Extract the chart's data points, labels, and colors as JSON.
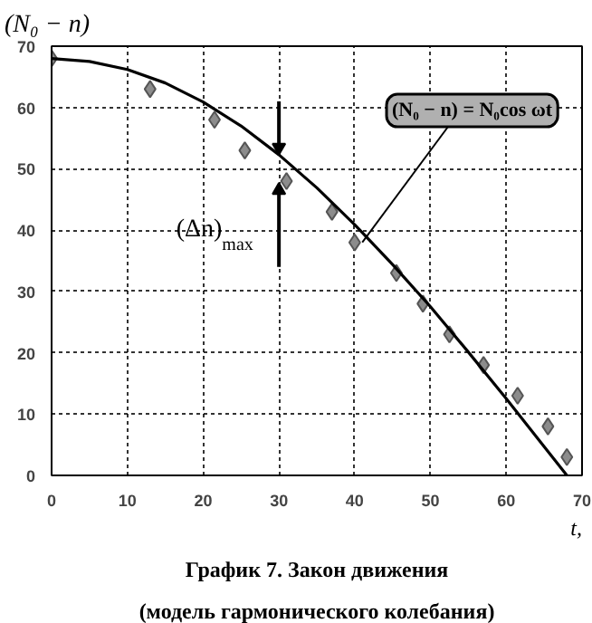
{
  "chart_data": {
    "type": "scatter",
    "ylabel": "(N₀ − n)",
    "xlabel": "t,",
    "xlim": [
      0,
      70
    ],
    "ylim": [
      0,
      70
    ],
    "xticks": [
      0,
      10,
      20,
      30,
      40,
      50,
      60,
      70
    ],
    "yticks": [
      0,
      10,
      20,
      30,
      40,
      50,
      60,
      70
    ],
    "grid": true,
    "series": [
      {
        "marker": "diamond",
        "color": "#8c8c8c",
        "x": [
          0,
          13,
          21.5,
          25.5,
          31,
          37,
          40,
          45.5,
          49,
          52.5,
          57,
          61.5,
          65.5,
          68
        ],
        "values": [
          68,
          63,
          58,
          53,
          48,
          43,
          38,
          33,
          28,
          23,
          18,
          13,
          8,
          3
        ]
      },
      {
        "type": "line",
        "marker": "none",
        "color": "#000000",
        "line_style": "solid",
        "x": [
          0,
          5,
          10,
          15,
          20,
          25,
          30,
          35,
          40,
          45,
          50,
          55,
          60,
          65,
          68
        ],
        "values": [
          68,
          67.5,
          66.2,
          64,
          60.9,
          57,
          52.3,
          46.9,
          40.9,
          34.4,
          27.5,
          20.1,
          12.5,
          4.7,
          0
        ]
      }
    ],
    "annotations": [
      {
        "text": "(N₀ − n) = N₀cos ωt",
        "x": 41,
        "y": 38
      },
      {
        "text": "(Δn)$_{max}$",
        "x": 30,
        "y": 50
      },
      "График 7. Закон движения",
      "(модель гармонического колебания)"
    ]
  }
}
